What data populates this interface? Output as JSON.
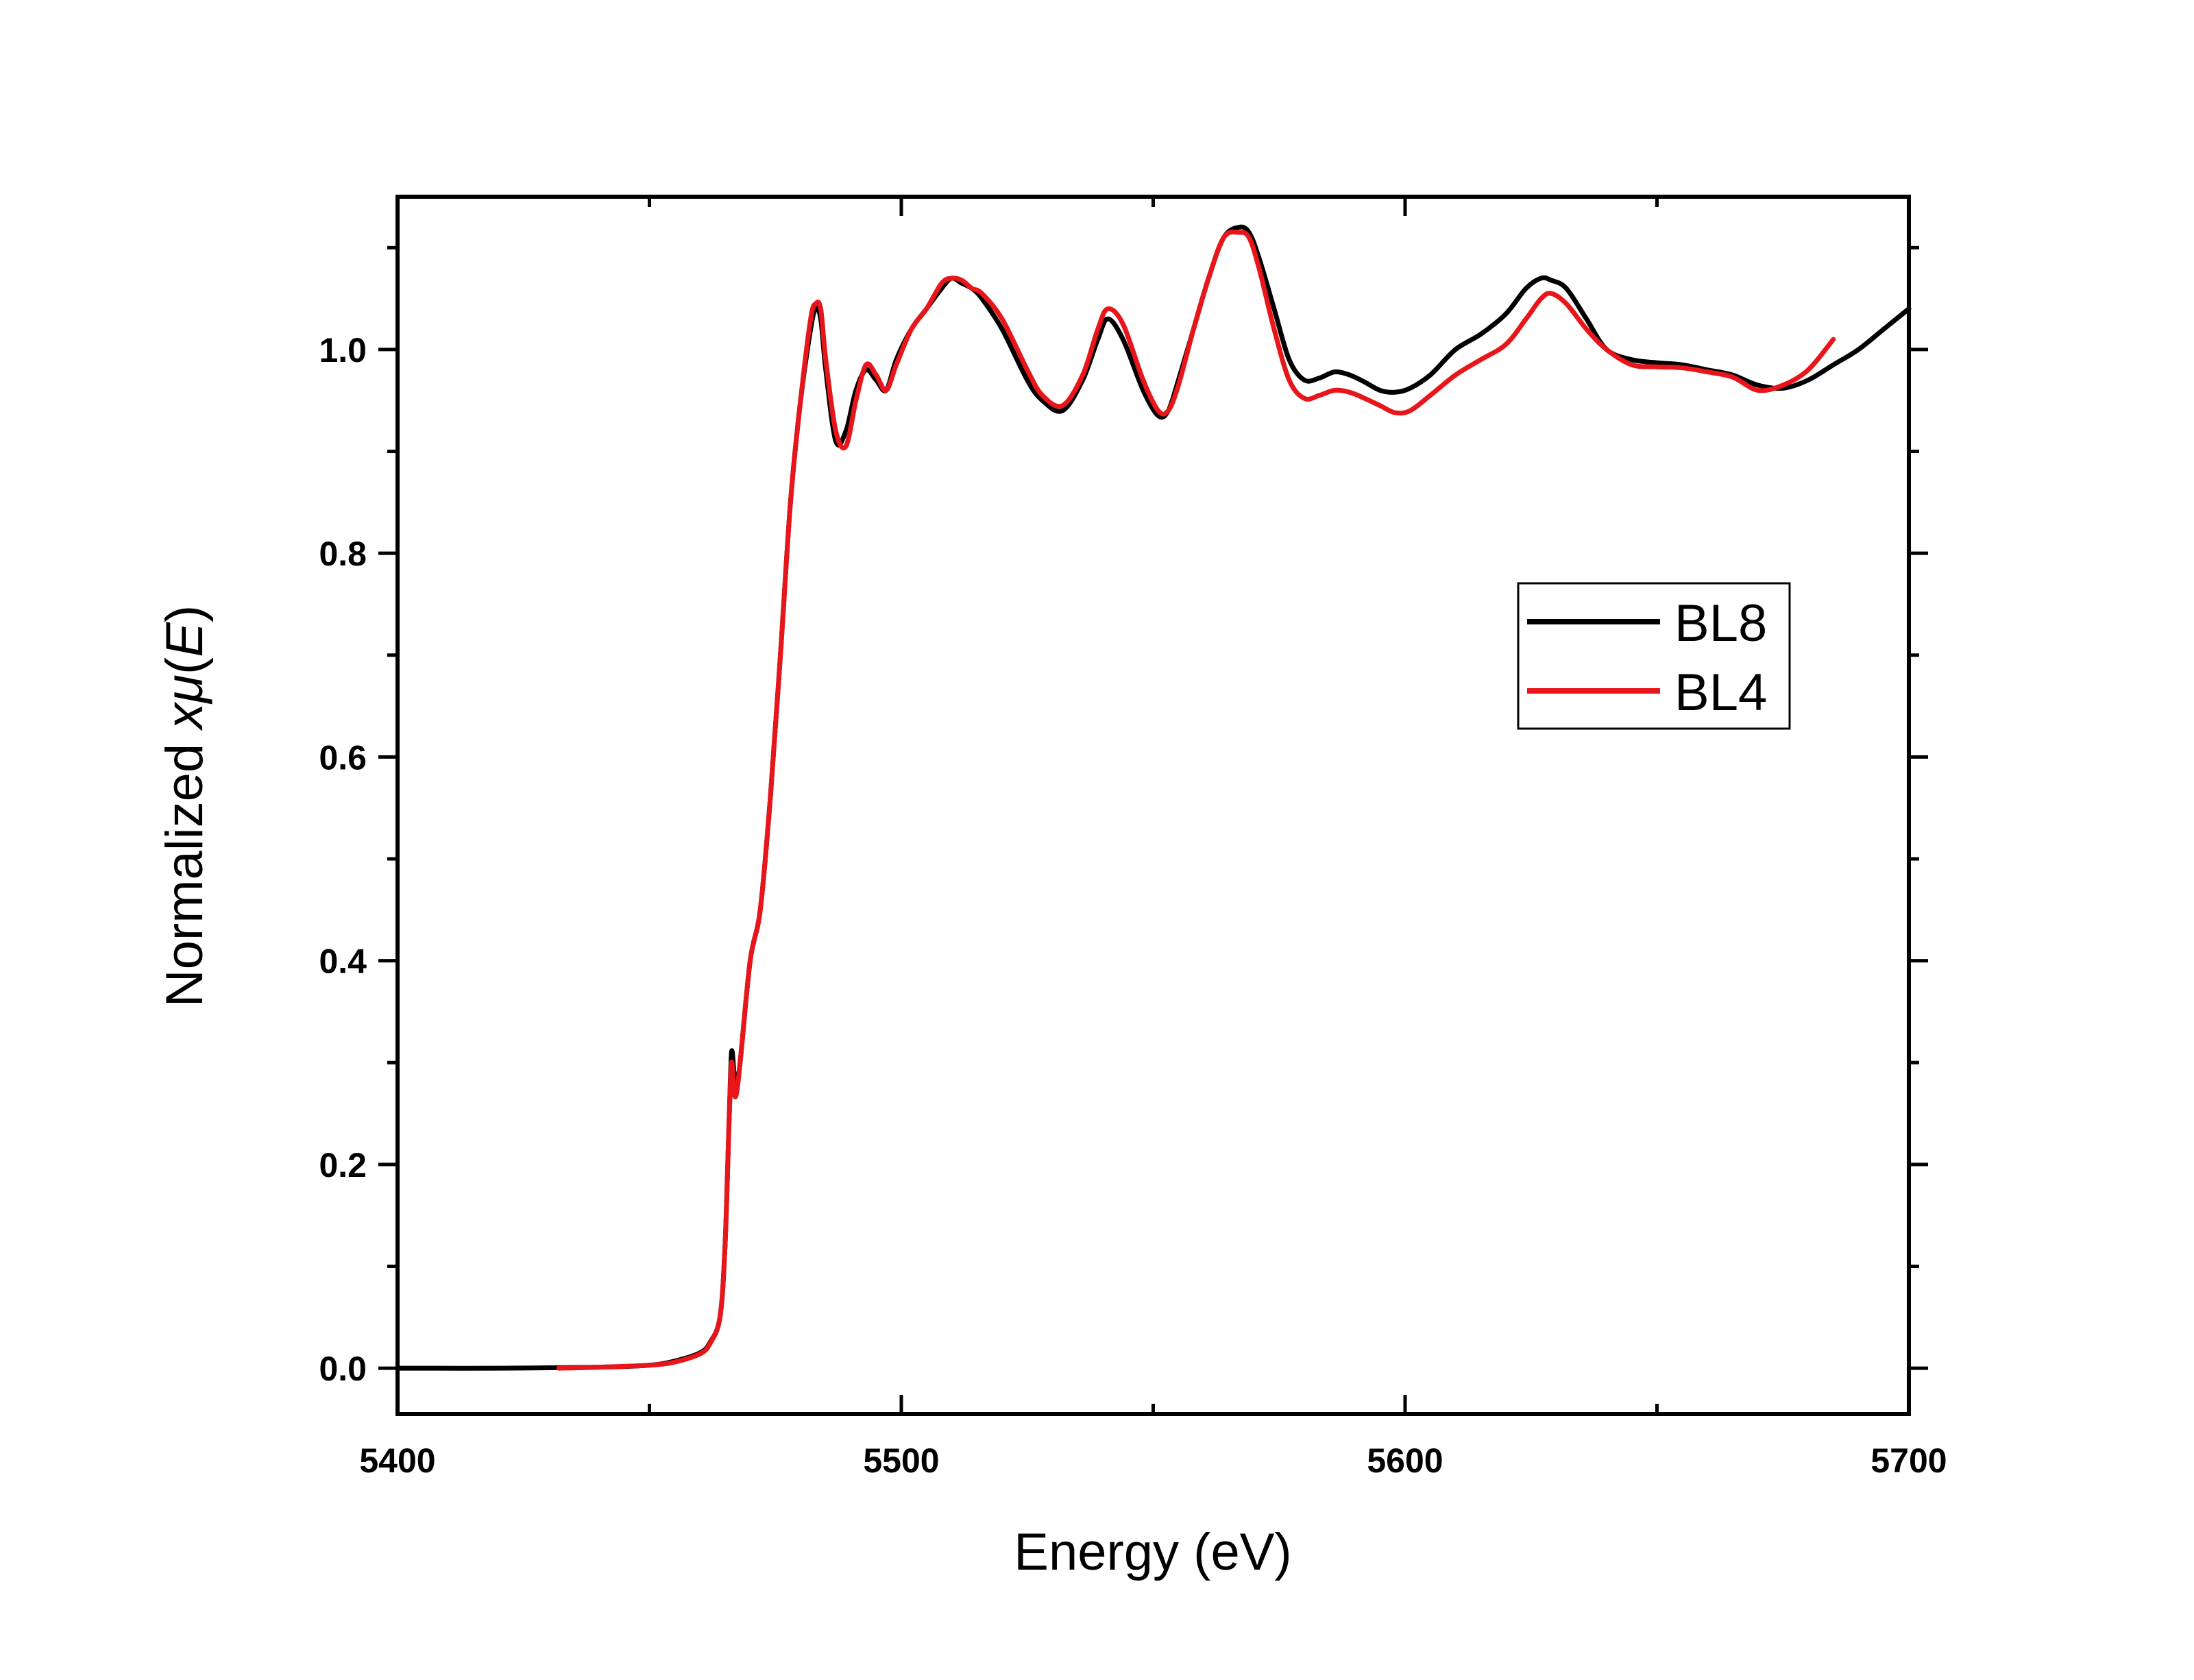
{
  "chart_data": {
    "type": "line",
    "title": "",
    "xlabel": "Energy (eV)",
    "ylabel": {
      "prefix": "Normalized ",
      "symbol": "x",
      "mu": "μ",
      "paren_open": "(",
      "var": "E",
      "paren_close": ")"
    },
    "xlim": [
      5400,
      5700
    ],
    "ylim": [
      -0.045,
      1.15
    ],
    "xticks": [
      5400,
      5500,
      5600,
      5700
    ],
    "xtick_labels": [
      "5400",
      "5500",
      "5600",
      "5700"
    ],
    "yticks": [
      0.0,
      0.2,
      0.4,
      0.6,
      0.8,
      1.0
    ],
    "ytick_labels": [
      "0.0",
      "0.2",
      "0.4",
      "0.6",
      "0.8",
      "1.0"
    ],
    "grid": false,
    "legend_position": "right, upper-middle",
    "series": [
      {
        "name": "BL8",
        "color": "#000000",
        "x": [
          5400,
          5420,
          5440,
          5450,
          5455,
          5460,
          5462,
          5464,
          5465,
          5465.8,
          5466.3,
          5466.8,
          5467.3,
          5468,
          5470,
          5472,
          5474,
          5476,
          5478,
          5480,
          5482,
          5483,
          5484,
          5485,
          5487,
          5489,
          5491,
          5493,
          5495,
          5497,
          5499,
          5502,
          5505,
          5508,
          5510,
          5512,
          5514,
          5516,
          5520,
          5525,
          5528,
          5532,
          5536,
          5539,
          5541,
          5544,
          5548,
          5551,
          5553,
          5555,
          5558,
          5561,
          5564,
          5567,
          5569,
          5571,
          5574,
          5577,
          5580,
          5583,
          5586,
          5589,
          5592,
          5595,
          5598,
          5601,
          5605,
          5610,
          5615,
          5620,
          5624,
          5627,
          5629,
          5632,
          5636,
          5640,
          5645,
          5650,
          5655,
          5660,
          5665,
          5670,
          5675,
          5680,
          5685,
          5690,
          5695,
          5700
        ],
        "y": [
          0.0,
          0.0,
          0.001,
          0.003,
          0.007,
          0.015,
          0.025,
          0.05,
          0.12,
          0.24,
          0.31,
          0.29,
          0.28,
          0.3,
          0.4,
          0.45,
          0.56,
          0.7,
          0.85,
          0.95,
          1.02,
          1.04,
          1.03,
          0.98,
          0.91,
          0.92,
          0.96,
          0.98,
          0.97,
          0.96,
          0.99,
          1.02,
          1.04,
          1.06,
          1.07,
          1.065,
          1.06,
          1.05,
          1.02,
          0.97,
          0.95,
          0.94,
          0.97,
          1.01,
          1.03,
          1.01,
          0.96,
          0.935,
          0.94,
          0.97,
          1.02,
          1.07,
          1.11,
          1.12,
          1.115,
          1.09,
          1.04,
          0.99,
          0.97,
          0.972,
          0.978,
          0.975,
          0.968,
          0.96,
          0.958,
          0.962,
          0.975,
          1.0,
          1.015,
          1.035,
          1.06,
          1.07,
          1.068,
          1.06,
          1.03,
          1.0,
          0.99,
          0.987,
          0.985,
          0.98,
          0.975,
          0.965,
          0.962,
          0.97,
          0.985,
          1.0,
          1.02,
          1.04
        ]
      },
      {
        "name": "BL4",
        "color": "#e8161b",
        "x": [
          5432,
          5440,
          5450,
          5455,
          5460,
          5462,
          5464,
          5465,
          5465.8,
          5466.3,
          5466.8,
          5467.3,
          5468,
          5470,
          5472,
          5474,
          5476,
          5478,
          5480,
          5482,
          5483,
          5484,
          5485,
          5487,
          5489,
          5491,
          5493,
          5495,
          5497,
          5499,
          5502,
          5505,
          5508,
          5510,
          5512,
          5514,
          5516,
          5520,
          5525,
          5528,
          5532,
          5536,
          5539,
          5541,
          5544,
          5548,
          5551,
          5553,
          5555,
          5558,
          5561,
          5564,
          5567,
          5569,
          5571,
          5574,
          5577,
          5580,
          5583,
          5586,
          5589,
          5592,
          5595,
          5598,
          5601,
          5605,
          5610,
          5615,
          5620,
          5624,
          5627,
          5629,
          5632,
          5636,
          5640,
          5645,
          5650,
          5655,
          5660,
          5665,
          5670,
          5675,
          5680,
          5685
        ],
        "y": [
          0.0,
          0.001,
          0.003,
          0.006,
          0.014,
          0.024,
          0.05,
          0.12,
          0.24,
          0.3,
          0.27,
          0.27,
          0.3,
          0.4,
          0.45,
          0.56,
          0.7,
          0.85,
          0.95,
          1.03,
          1.045,
          1.04,
          0.99,
          0.92,
          0.905,
          0.95,
          0.985,
          0.975,
          0.96,
          0.985,
          1.02,
          1.04,
          1.065,
          1.07,
          1.068,
          1.06,
          1.055,
          1.03,
          0.98,
          0.955,
          0.945,
          0.975,
          1.02,
          1.04,
          1.025,
          0.97,
          0.94,
          0.94,
          0.965,
          1.02,
          1.07,
          1.11,
          1.115,
          1.11,
          1.08,
          1.02,
          0.97,
          0.952,
          0.955,
          0.96,
          0.958,
          0.952,
          0.945,
          0.938,
          0.94,
          0.955,
          0.975,
          0.99,
          1.005,
          1.03,
          1.05,
          1.055,
          1.045,
          1.02,
          1.0,
          0.985,
          0.983,
          0.982,
          0.978,
          0.973,
          0.96,
          0.965,
          0.98,
          1.01
        ]
      }
    ]
  }
}
